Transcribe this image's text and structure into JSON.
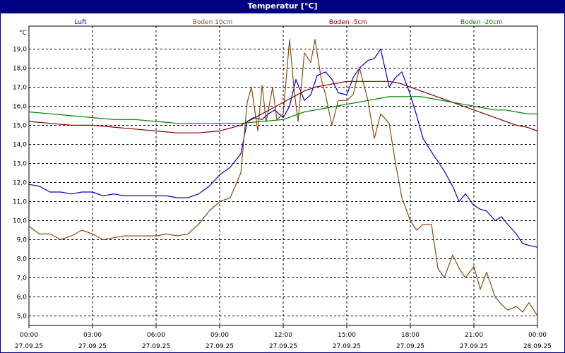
{
  "window": {
    "title": "Temperatur [°C]"
  },
  "chart_data": {
    "type": "line",
    "title": "Temperatur [°C]",
    "ylabel": "°C",
    "xlabel": "",
    "ylim": [
      4.5,
      20.2
    ],
    "xlim": [
      0,
      24
    ],
    "grid": true,
    "legend_placement": "top",
    "y_ticks": [
      "5,0",
      "6,0",
      "7,0",
      "8,0",
      "9,0",
      "10,0",
      "11,0",
      "12,0",
      "13,0",
      "14,0",
      "15,0",
      "16,0",
      "17,0",
      "18,0",
      "19,0"
    ],
    "x_ticks": [
      {
        "time": "00:00",
        "date": "27.09.25"
      },
      {
        "time": "03:00",
        "date": "27.09.25"
      },
      {
        "time": "06:00",
        "date": "27.09.25"
      },
      {
        "time": "09:00",
        "date": "27.09.25"
      },
      {
        "time": "12:00",
        "date": "27.09.25"
      },
      {
        "time": "15:00",
        "date": "27.09.25"
      },
      {
        "time": "18:00",
        "date": "27.09.25"
      },
      {
        "time": "21:00",
        "date": "27.09.25"
      },
      {
        "time": "00:00",
        "date": "28.09.25"
      }
    ],
    "series": [
      {
        "name": "Luft",
        "color": "#0000cc",
        "x": [
          0,
          0.5,
          1,
          1.5,
          2,
          2.5,
          3,
          3.5,
          4,
          4.5,
          5,
          5.5,
          6,
          6.5,
          7,
          7.5,
          8,
          8.5,
          9,
          9.5,
          10,
          10.3,
          10.6,
          11,
          11.3,
          11.6,
          12,
          12.3,
          12.6,
          13,
          13.3,
          13.6,
          14,
          14.3,
          14.6,
          15,
          15.3,
          15.6,
          16,
          16.3,
          16.6,
          17,
          17.3,
          17.6,
          18,
          18.3,
          18.6,
          19,
          19.3,
          19.6,
          20,
          20.3,
          20.6,
          21,
          21.3,
          21.6,
          22,
          22.3,
          22.6,
          23,
          23.3,
          23.6,
          24
        ],
        "y": [
          11.9,
          11.8,
          11.5,
          11.5,
          11.4,
          11.5,
          11.5,
          11.3,
          11.4,
          11.3,
          11.3,
          11.3,
          11.3,
          11.3,
          11.2,
          11.2,
          11.4,
          11.8,
          12.4,
          12.8,
          13.5,
          15.2,
          15.4,
          15.3,
          15.6,
          15.8,
          15.4,
          16.0,
          17.4,
          16.3,
          16.6,
          17.6,
          17.8,
          17.4,
          16.7,
          16.6,
          17.5,
          18.0,
          18.4,
          18.5,
          19.0,
          17.0,
          17.5,
          17.8,
          16.6,
          15.5,
          14.3,
          13.6,
          13.1,
          12.6,
          11.8,
          11.0,
          11.4,
          10.8,
          10.6,
          10.5,
          10.0,
          10.2,
          9.8,
          9.3,
          8.8,
          8.7,
          8.6
        ],
        "name_key": "Luft"
      },
      {
        "name": "Boden 10cm",
        "color": "#8b4a10",
        "x": [
          0,
          0.5,
          1,
          1.5,
          2,
          2.5,
          3,
          3.5,
          4,
          4.5,
          5,
          5.5,
          6,
          6.5,
          7,
          7.5,
          8,
          8.5,
          9,
          9.5,
          10,
          10.3,
          10.5,
          10.8,
          11,
          11.2,
          11.5,
          11.7,
          12,
          12.3,
          12.5,
          12.7,
          13,
          13.3,
          13.5,
          13.8,
          14,
          14.3,
          14.6,
          15,
          15.3,
          15.6,
          16,
          16.3,
          16.6,
          17,
          17.3,
          17.6,
          18,
          18.3,
          18.6,
          19,
          19.3,
          19.6,
          20,
          20.3,
          20.6,
          21,
          21.3,
          21.6,
          22,
          22.3,
          22.6,
          23,
          23.3,
          23.6,
          24
        ],
        "y": [
          9.7,
          9.3,
          9.3,
          9.0,
          9.2,
          9.5,
          9.3,
          9.0,
          9.1,
          9.2,
          9.2,
          9.2,
          9.2,
          9.3,
          9.2,
          9.3,
          9.8,
          10.5,
          11.0,
          11.2,
          12.5,
          16.2,
          17.0,
          14.7,
          17.1,
          15.2,
          17.0,
          15.3,
          15.6,
          19.5,
          17.0,
          15.2,
          18.8,
          18.3,
          19.5,
          17.4,
          16.6,
          15.0,
          16.3,
          16.3,
          16.6,
          18.0,
          16.3,
          14.3,
          15.6,
          15.1,
          13.0,
          11.2,
          10.0,
          9.5,
          9.8,
          9.8,
          7.5,
          7.0,
          8.2,
          7.5,
          7.0,
          7.6,
          6.4,
          7.3,
          6.0,
          5.6,
          5.3,
          5.5,
          5.2,
          5.7,
          5.0
        ],
        "name_key": "Boden 10cm"
      },
      {
        "name": "Boden -5cm",
        "color": "#800000",
        "x": [
          0,
          1,
          2,
          3,
          4,
          5,
          6,
          7,
          8,
          9,
          10,
          10.5,
          11,
          11.5,
          12,
          12.5,
          13,
          13.5,
          14,
          14.5,
          15,
          15.5,
          16,
          16.5,
          17,
          17.5,
          18,
          18.5,
          19,
          19.5,
          20,
          20.5,
          21,
          21.5,
          22,
          22.5,
          23,
          23.5,
          24
        ],
        "y": [
          15.2,
          15.1,
          15.0,
          15.0,
          14.9,
          14.8,
          14.7,
          14.6,
          14.6,
          14.7,
          15.0,
          15.3,
          15.6,
          15.9,
          16.2,
          16.5,
          16.8,
          17.0,
          17.1,
          17.2,
          17.3,
          17.3,
          17.3,
          17.3,
          17.3,
          17.2,
          17.0,
          16.8,
          16.6,
          16.4,
          16.2,
          16.0,
          15.8,
          15.6,
          15.4,
          15.2,
          15.0,
          14.9,
          14.7
        ],
        "name_key": "Boden -5cm"
      },
      {
        "name": "Boden -20cm",
        "color": "#008000",
        "x": [
          0,
          1,
          2,
          3,
          4,
          5,
          6,
          7,
          8,
          9,
          10,
          11,
          12,
          12.5,
          13,
          13.5,
          14,
          14.5,
          15,
          15.5,
          16,
          16.5,
          17,
          17.5,
          18,
          18.5,
          19,
          19.5,
          20,
          20.5,
          21,
          21.5,
          22,
          22.5,
          23,
          23.5,
          24
        ],
        "y": [
          15.7,
          15.6,
          15.5,
          15.4,
          15.3,
          15.3,
          15.2,
          15.1,
          15.1,
          15.1,
          15.1,
          15.2,
          15.3,
          15.5,
          15.7,
          15.8,
          15.9,
          16.0,
          16.1,
          16.2,
          16.3,
          16.4,
          16.5,
          16.5,
          16.5,
          16.5,
          16.4,
          16.3,
          16.2,
          16.1,
          16.0,
          15.9,
          15.8,
          15.8,
          15.7,
          15.6,
          15.6
        ],
        "name_key": "Boden -20cm"
      }
    ]
  }
}
